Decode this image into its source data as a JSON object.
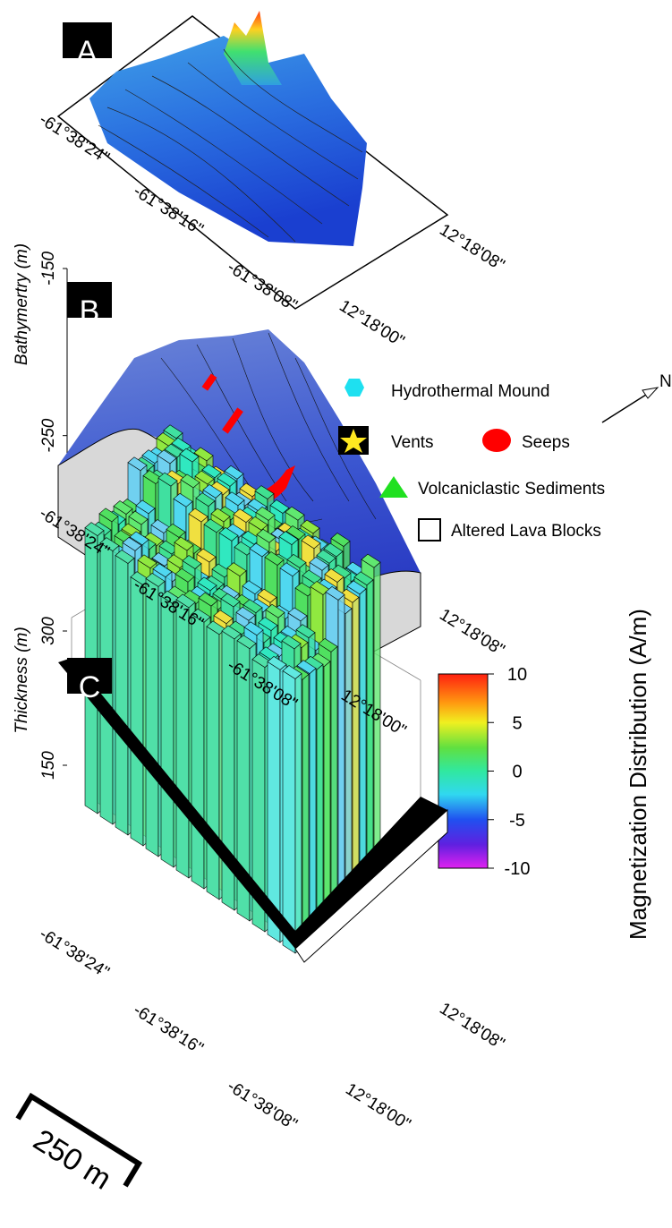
{
  "panels": [
    {
      "label": "A",
      "lon_labels": [
        "-61°38'24\"",
        "-61°38'16\"",
        "-61°38'08\""
      ],
      "lat_labels": [
        "12°18'08\"",
        "12°18'00\""
      ]
    },
    {
      "label": "B",
      "axis_label": "Bathymertry (m)",
      "ylim": [
        -300,
        -150
      ],
      "yticks": [
        -150,
        -250
      ],
      "lon_labels": [
        "-61°38'24\"",
        "-61°38'16\"",
        "-61°38'08\""
      ],
      "lat_labels": [
        "12°18'08\"",
        "12°18'00\""
      ]
    },
    {
      "label": "C",
      "axis_label": "Thickness (m)",
      "ylim": [
        0,
        300
      ],
      "yticks": [
        300,
        150
      ],
      "lon_labels": [
        "-61°38'24\"",
        "-61°38'16\"",
        "-61°38'08\""
      ],
      "lat_labels": [
        "12°18'08\"",
        "12°18'00\""
      ]
    }
  ],
  "legend": [
    "Hydrothermal Mound",
    "Vents",
    "Seeps",
    "Volcaniclastic Sediments",
    "Altered Lava Blocks"
  ],
  "north": "N",
  "colorbar": {
    "label": "Magnetization Distribution (A/m)",
    "ylim": [
      -10,
      10
    ],
    "yticks": [
      10,
      5,
      0,
      -5,
      -10
    ]
  },
  "scale_bar": "250 m"
}
